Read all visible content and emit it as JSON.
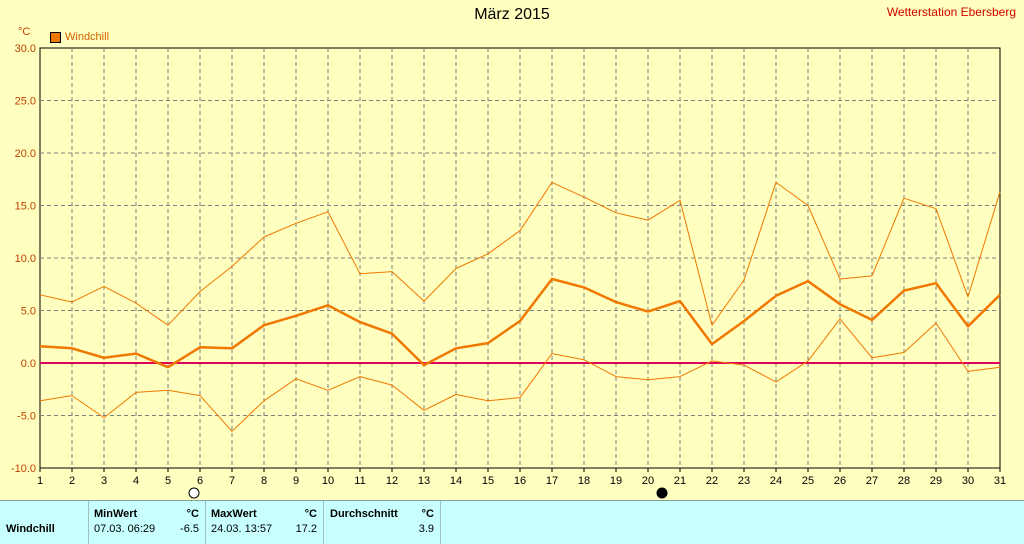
{
  "title": "März 2015",
  "station": "Wetterstation Ebersberg",
  "unit": "°C",
  "legend": "Windchill",
  "chart_data": {
    "type": "line",
    "x": [
      1,
      2,
      3,
      4,
      5,
      6,
      7,
      8,
      9,
      10,
      11,
      12,
      13,
      14,
      15,
      16,
      17,
      18,
      19,
      20,
      21,
      22,
      23,
      24,
      25,
      26,
      27,
      28,
      29,
      30,
      31
    ],
    "xlim": [
      1,
      31
    ],
    "ylim": [
      -10,
      30
    ],
    "yticks": [
      "30.0",
      "25.0",
      "20.0",
      "15.0",
      "10.0",
      "5.0",
      "0.0",
      "-5.0",
      "-10.0"
    ],
    "xticks": [
      "1",
      "2",
      "3",
      "4",
      "5",
      "6",
      "7",
      "8",
      "9",
      "10",
      "11",
      "12",
      "13",
      "14",
      "15",
      "16",
      "17",
      "18",
      "19",
      "20",
      "21",
      "22",
      "23",
      "24",
      "25",
      "26",
      "27",
      "28",
      "29",
      "30",
      "31"
    ],
    "series": [
      {
        "values": [
          6.5,
          5.8,
          7.3,
          5.7,
          3.6,
          6.8,
          9.2,
          12.0,
          13.3,
          14.4,
          8.5,
          8.7,
          5.9,
          9.0,
          10.4,
          12.6,
          17.2,
          15.8,
          14.3,
          13.6,
          15.5,
          3.6,
          7.9,
          17.2,
          15.0,
          8.0,
          8.3,
          15.7,
          14.7,
          6.3,
          16.3
        ],
        "color": "#f07800",
        "width": 1
      },
      {
        "values": [
          1.6,
          1.4,
          0.5,
          0.9,
          -0.4,
          1.5,
          1.4,
          3.6,
          4.5,
          5.5,
          3.9,
          2.8,
          -0.2,
          1.4,
          1.9,
          4.0,
          8.0,
          7.2,
          5.8,
          4.9,
          5.9,
          1.8,
          4.0,
          6.4,
          7.8,
          5.6,
          4.1,
          6.9,
          7.6,
          3.5,
          6.5
        ],
        "color": "#f07800",
        "width": 2.5
      },
      {
        "values": [
          -3.6,
          -3.1,
          -5.2,
          -2.8,
          -2.6,
          -3.1,
          -6.5,
          -3.6,
          -1.5,
          -2.6,
          -1.3,
          -2.1,
          -4.5,
          -3.0,
          -3.6,
          -3.3,
          0.9,
          0.3,
          -1.3,
          -1.6,
          -1.3,
          0.2,
          -0.2,
          -1.8,
          0.2,
          4.2,
          0.5,
          1.0,
          3.8,
          -0.8,
          -0.4
        ],
        "color": "#f07800",
        "width": 1
      }
    ],
    "zero_line_color": "#e0005a",
    "grid": true
  },
  "stats": {
    "row_label": "Windchill",
    "min_header": "MinWert",
    "min_date": "07.03.  06:29",
    "min_value": "-6.5",
    "max_header": "MaxWert",
    "max_date": "24.03.  13:57",
    "max_value": "17.2",
    "avg_header": "Durchschnitt",
    "avg_value": "3.9",
    "unit_header": "°C"
  }
}
